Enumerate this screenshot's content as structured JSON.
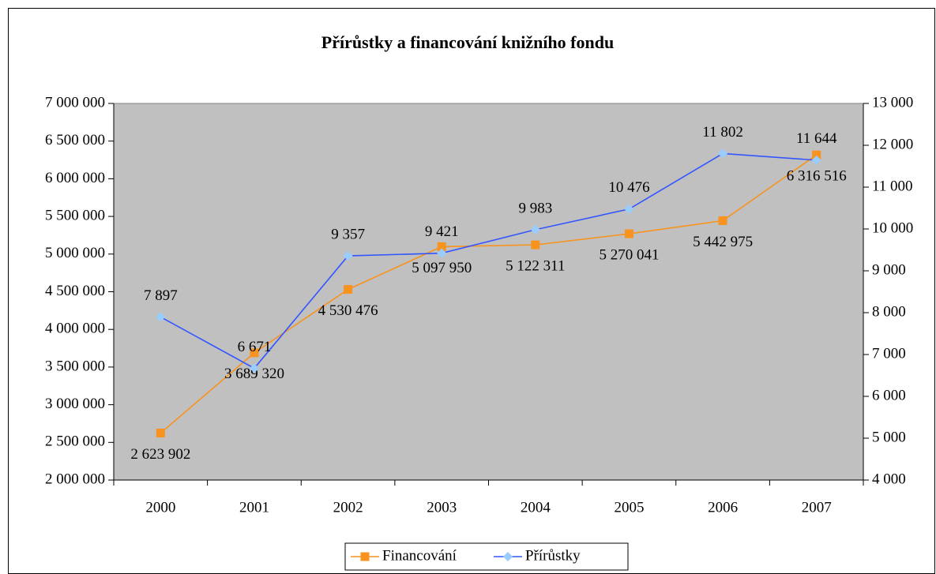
{
  "chart_data": {
    "type": "line",
    "title": "Přírůstky a financování knižního fondu",
    "categories": [
      "2000",
      "2001",
      "2002",
      "2003",
      "2004",
      "2005",
      "2006",
      "2007"
    ],
    "series": [
      {
        "name": "Financování",
        "color": "#f7931e",
        "marker_color": "#f7931e",
        "marker": "square",
        "values": [
          2623902,
          3689320,
          4530476,
          5097950,
          5122311,
          5270041,
          5442975,
          6316516
        ],
        "value_labels": [
          "2 623 902",
          "3 689 320",
          "4 530 476",
          "5 097 950",
          "5 122 311",
          "5 270 041",
          "5 442 975",
          "6 316 516"
        ]
      },
      {
        "name": "Přírůstky",
        "color": "#3355ff",
        "marker_color": "#99ccff",
        "marker": "diamond",
        "axis": "y2",
        "values": [
          7897,
          6671,
          9357,
          9421,
          9983,
          10476,
          11802,
          11644
        ],
        "value_labels": [
          "7 897",
          "6 671",
          "9 357",
          "9 421",
          "9 983",
          "10 476",
          "11 802",
          "11 644"
        ]
      }
    ],
    "ylim": [
      2000000,
      7000000
    ],
    "yticks": [
      {
        "value": 2000000,
        "label": "2 000 000"
      },
      {
        "value": 2500000,
        "label": "2 500 000"
      },
      {
        "value": 3000000,
        "label": "3 000 000"
      },
      {
        "value": 3500000,
        "label": "3 500 000"
      },
      {
        "value": 4000000,
        "label": "4 000 000"
      },
      {
        "value": 4500000,
        "label": "4 500 000"
      },
      {
        "value": 5000000,
        "label": "5 000 000"
      },
      {
        "value": 5500000,
        "label": "5 500 000"
      },
      {
        "value": 6000000,
        "label": "6 000 000"
      },
      {
        "value": 6500000,
        "label": "6 500 000"
      },
      {
        "value": 7000000,
        "label": "7 000 000"
      }
    ],
    "y2lim": [
      4000,
      13000
    ],
    "y2ticks": [
      {
        "value": 4000,
        "label": "4 000"
      },
      {
        "value": 5000,
        "label": "5 000"
      },
      {
        "value": 6000,
        "label": "6 000"
      },
      {
        "value": 7000,
        "label": "7 000"
      },
      {
        "value": 8000,
        "label": "8 000"
      },
      {
        "value": 9000,
        "label": "9 000"
      },
      {
        "value": 10000,
        "label": "10 000"
      },
      {
        "value": 11000,
        "label": "11 000"
      },
      {
        "value": 12000,
        "label": "12 000"
      },
      {
        "value": 13000,
        "label": "13 000"
      }
    ],
    "grid": false,
    "legend": "bottom",
    "plot_background": "#c0c0c0"
  }
}
